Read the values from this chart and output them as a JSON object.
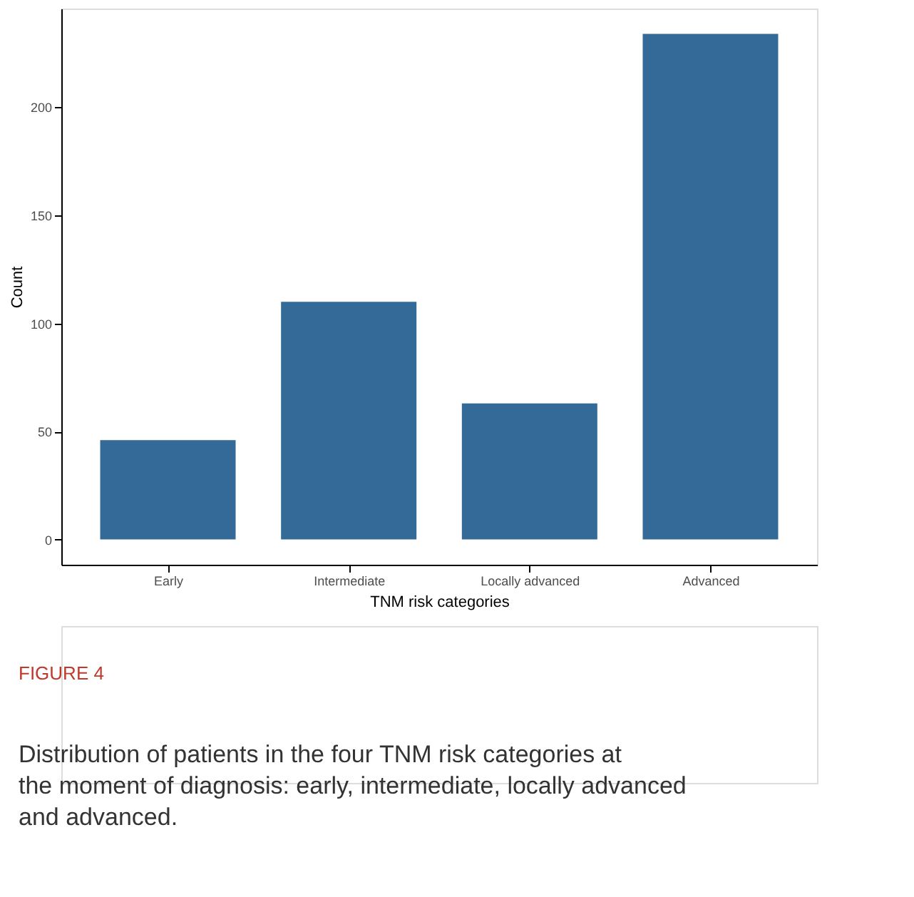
{
  "chart_data": {
    "type": "bar",
    "xlabel": "TNM risk categories",
    "ylabel": "Count",
    "categories": [
      "Early",
      "Intermediate",
      "Locally advanced",
      "Advanced"
    ],
    "values": [
      46,
      110,
      63,
      234
    ],
    "color": "#336a98",
    "ylim": [
      -11.7,
      245.7
    ],
    "yticks": [
      0,
      50,
      100,
      150,
      200
    ],
    "grid": false,
    "annotations": [
      "FIGURE 4",
      "Distribution of patients in the four TNM risk categories at the moment of diagnosis: early, intermediate, locally advanced and advanced."
    ]
  }
}
